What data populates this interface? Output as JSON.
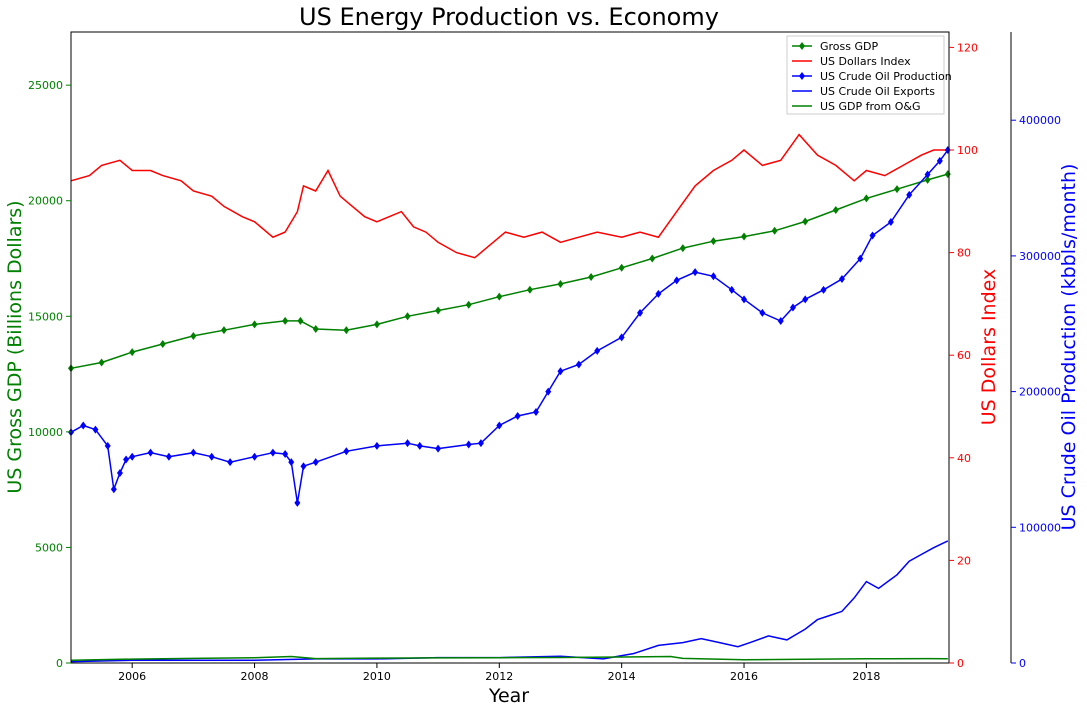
{
  "chart_data": {
    "type": "line",
    "title": "US Energy Production vs. Economy",
    "xlabel": "Year",
    "xlim": [
      2005.0,
      2019.35
    ],
    "x_ticks": [
      "2006",
      "2008",
      "2010",
      "2012",
      "2014",
      "2016",
      "2018"
    ],
    "legend_position": "top-right",
    "axes": {
      "left": {
        "label": "US Gross GDP (Billions Dollars)",
        "color": "#008000",
        "ylim": [
          0,
          27300
        ],
        "ticks": [
          "0",
          "5000",
          "10000",
          "15000",
          "20000",
          "25000"
        ]
      },
      "right1": {
        "label": "US Dollars Index",
        "color": "#ff0000",
        "ylim": [
          0,
          123
        ],
        "ticks": [
          "0",
          "20",
          "40",
          "60",
          "80",
          "100",
          "120"
        ]
      },
      "right2": {
        "label": "US Crude Oil Production (kbbls/month)",
        "color": "#0000ff",
        "ylim": [
          0,
          465000
        ],
        "ticks": [
          "0",
          "100000",
          "200000",
          "300000",
          "400000"
        ]
      }
    },
    "series": [
      {
        "name": "Gross GDP",
        "axis": "left",
        "color": "#008000",
        "marker": "diamond",
        "x": [
          2005.0,
          2005.5,
          2006.0,
          2006.5,
          2007.0,
          2007.5,
          2008.0,
          2008.5,
          2008.75,
          2009.0,
          2009.5,
          2010.0,
          2010.5,
          2011.0,
          2011.5,
          2012.0,
          2012.5,
          2013.0,
          2013.5,
          2014.0,
          2014.5,
          2015.0,
          2015.5,
          2016.0,
          2016.5,
          2017.0,
          2017.5,
          2018.0,
          2018.5,
          2019.0,
          2019.33
        ],
        "y": [
          12750,
          13000,
          13450,
          13800,
          14150,
          14400,
          14650,
          14800,
          14800,
          14450,
          14400,
          14650,
          15000,
          15250,
          15500,
          15850,
          16150,
          16400,
          16700,
          17100,
          17500,
          17950,
          18250,
          18450,
          18700,
          19100,
          19600,
          20100,
          20500,
          20900,
          21150
        ]
      },
      {
        "name": "US Dollars Index",
        "axis": "right1",
        "color": "#ff0000",
        "marker": "none",
        "x": [
          2005.0,
          2005.3,
          2005.5,
          2005.8,
          2006.0,
          2006.3,
          2006.5,
          2006.8,
          2007.0,
          2007.3,
          2007.5,
          2007.8,
          2008.0,
          2008.3,
          2008.5,
          2008.7,
          2008.8,
          2009.0,
          2009.2,
          2009.4,
          2009.6,
          2009.8,
          2010.0,
          2010.2,
          2010.4,
          2010.6,
          2010.8,
          2011.0,
          2011.3,
          2011.6,
          2011.9,
          2012.1,
          2012.4,
          2012.7,
          2013.0,
          2013.3,
          2013.6,
          2014.0,
          2014.3,
          2014.6,
          2014.9,
          2015.2,
          2015.5,
          2015.8,
          2016.0,
          2016.3,
          2016.6,
          2016.9,
          2017.2,
          2017.5,
          2017.8,
          2018.0,
          2018.3,
          2018.6,
          2018.9,
          2019.1,
          2019.33
        ],
        "y": [
          94,
          95,
          97,
          98,
          96,
          96,
          95,
          94,
          92,
          91,
          89,
          87,
          86,
          83,
          84,
          88,
          93,
          92,
          96,
          91,
          89,
          87,
          86,
          87,
          88,
          85,
          84,
          82,
          80,
          79,
          82,
          84,
          83,
          84,
          82,
          83,
          84,
          83,
          84,
          83,
          88,
          93,
          96,
          98,
          100,
          97,
          98,
          103,
          99,
          97,
          94,
          96,
          95,
          97,
          99,
          100,
          100
        ]
      },
      {
        "name": "US Crude Oil Production",
        "axis": "right2",
        "color": "#0000ff",
        "marker": "diamond",
        "x": [
          2005.0,
          2005.2,
          2005.4,
          2005.6,
          2005.7,
          2005.8,
          2005.9,
          2006.0,
          2006.3,
          2006.6,
          2007.0,
          2007.3,
          2007.6,
          2008.0,
          2008.3,
          2008.5,
          2008.6,
          2008.7,
          2008.8,
          2009.0,
          2009.5,
          2010.0,
          2010.5,
          2010.7,
          2011.0,
          2011.5,
          2011.7,
          2012.0,
          2012.3,
          2012.6,
          2012.8,
          2013.0,
          2013.3,
          2013.6,
          2014.0,
          2014.3,
          2014.6,
          2014.9,
          2015.2,
          2015.5,
          2015.8,
          2016.0,
          2016.3,
          2016.6,
          2016.8,
          2017.0,
          2017.3,
          2017.6,
          2017.9,
          2018.1,
          2018.4,
          2018.7,
          2019.0,
          2019.2,
          2019.33
        ],
        "y": [
          170000,
          175000,
          172000,
          160000,
          128000,
          140000,
          150000,
          152000,
          155000,
          152000,
          155000,
          152000,
          148000,
          152000,
          155000,
          154000,
          148000,
          118000,
          145000,
          148000,
          156000,
          160000,
          162000,
          160000,
          158000,
          161000,
          162000,
          175000,
          182000,
          185000,
          200000,
          215000,
          220000,
          230000,
          240000,
          258000,
          272000,
          282000,
          288000,
          285000,
          275000,
          268000,
          258000,
          252000,
          262000,
          268000,
          275000,
          283000,
          298000,
          315000,
          325000,
          345000,
          360000,
          370000,
          378000
        ]
      },
      {
        "name": "US Crude Oil Exports",
        "axis": "right2",
        "color": "#0000ff",
        "marker": "none",
        "x": [
          2005.0,
          2006.0,
          2007.0,
          2008.0,
          2009.0,
          2010.0,
          2011.0,
          2012.0,
          2013.0,
          2013.7,
          2014.2,
          2014.6,
          2015.0,
          2015.3,
          2015.6,
          2015.9,
          2016.1,
          2016.4,
          2016.7,
          2017.0,
          2017.2,
          2017.4,
          2017.6,
          2017.8,
          2018.0,
          2018.2,
          2018.5,
          2018.7,
          2018.9,
          2019.1,
          2019.33
        ],
        "y": [
          1000,
          2000,
          2000,
          2000,
          3000,
          3000,
          4000,
          4000,
          5000,
          3000,
          7000,
          13000,
          15000,
          18000,
          15000,
          12000,
          15000,
          20000,
          17000,
          25000,
          32000,
          35000,
          38000,
          48000,
          60000,
          55000,
          65000,
          75000,
          80000,
          85000,
          90000
        ]
      },
      {
        "name": "US GDP from O&G",
        "axis": "left",
        "color": "#008000",
        "marker": "none",
        "x": [
          2005.0,
          2006.0,
          2007.0,
          2008.0,
          2008.6,
          2009.0,
          2010.0,
          2011.0,
          2012.0,
          2013.0,
          2014.0,
          2014.8,
          2015.0,
          2016.0,
          2017.0,
          2018.0,
          2019.0,
          2019.33
        ],
        "y": [
          120,
          170,
          200,
          230,
          280,
          190,
          210,
          220,
          230,
          240,
          260,
          280,
          200,
          140,
          160,
          180,
          190,
          180
        ]
      }
    ]
  }
}
